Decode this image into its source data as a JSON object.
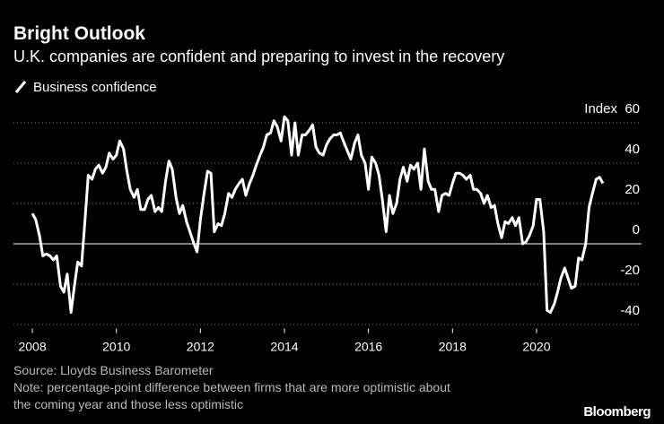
{
  "title": "Bright Outlook",
  "subtitle": "U.K. companies are confident and preparing to invest in the recovery",
  "source": "Source: Lloyds Business Barometer",
  "note": [
    "Note: percentage-point difference between firms that are more optimistic about",
    "the coming year and those less optimistic"
  ],
  "logo": "Bloomberg",
  "chart_data": {
    "type": "line",
    "ylabel": "Index",
    "legend": "top-left",
    "grid": true,
    "xlim": [
      2007.55,
      2022.5
    ],
    "xticks": [
      2008,
      2010,
      2012,
      2014,
      2016,
      2018,
      2020
    ],
    "ylim": [
      -42,
      68
    ],
    "yticks": [
      -40,
      -20,
      0,
      20,
      40,
      60
    ],
    "x": [
      2008.0,
      2008.08,
      2008.17,
      2008.25,
      2008.33,
      2008.42,
      2008.5,
      2008.58,
      2008.67,
      2008.75,
      2008.83,
      2008.92,
      2009.0,
      2009.08,
      2009.17,
      2009.25,
      2009.33,
      2009.42,
      2009.5,
      2009.58,
      2009.67,
      2009.75,
      2009.83,
      2009.92,
      2010.0,
      2010.08,
      2010.17,
      2010.25,
      2010.33,
      2010.42,
      2010.5,
      2010.58,
      2010.67,
      2010.75,
      2010.83,
      2010.92,
      2011.0,
      2011.08,
      2011.17,
      2011.25,
      2011.33,
      2011.42,
      2011.5,
      2011.58,
      2011.67,
      2011.75,
      2011.83,
      2011.92,
      2012.0,
      2012.08,
      2012.17,
      2012.25,
      2012.33,
      2012.42,
      2012.5,
      2012.58,
      2012.67,
      2012.75,
      2012.83,
      2012.92,
      2013.0,
      2013.08,
      2013.17,
      2013.25,
      2013.33,
      2013.42,
      2013.5,
      2013.58,
      2013.67,
      2013.75,
      2013.83,
      2013.92,
      2014.0,
      2014.08,
      2014.17,
      2014.25,
      2014.33,
      2014.42,
      2014.5,
      2014.58,
      2014.67,
      2014.75,
      2014.83,
      2014.92,
      2015.0,
      2015.08,
      2015.17,
      2015.25,
      2015.33,
      2015.42,
      2015.5,
      2015.58,
      2015.67,
      2015.75,
      2015.83,
      2015.92,
      2016.0,
      2016.08,
      2016.17,
      2016.25,
      2016.33,
      2016.42,
      2016.5,
      2016.58,
      2016.67,
      2016.75,
      2016.83,
      2016.92,
      2017.0,
      2017.08,
      2017.17,
      2017.25,
      2017.33,
      2017.42,
      2017.5,
      2017.58,
      2017.67,
      2017.75,
      2017.83,
      2017.92,
      2018.0,
      2018.08,
      2018.17,
      2018.25,
      2018.33,
      2018.42,
      2018.5,
      2018.58,
      2018.67,
      2018.75,
      2018.83,
      2018.92,
      2019.0,
      2019.08,
      2019.17,
      2019.25,
      2019.33,
      2019.42,
      2019.5,
      2019.58,
      2019.67,
      2019.75,
      2019.83,
      2019.92,
      2020.0,
      2020.08,
      2020.17,
      2020.25,
      2020.33,
      2020.42,
      2020.5,
      2020.58,
      2020.67,
      2020.75,
      2020.83,
      2020.92,
      2021.0,
      2021.08,
      2021.17,
      2021.25,
      2021.33,
      2021.42,
      2021.5,
      2021.58
    ],
    "series": [
      {
        "name": "Business confidence",
        "color": "#ffffff",
        "values": [
          15,
          12,
          4,
          -6,
          -5,
          -6,
          -8,
          -6,
          -21,
          -24,
          -15,
          -34,
          -21,
          -9,
          -11,
          11,
          34,
          32,
          37,
          39,
          35,
          38,
          45,
          42,
          44,
          51,
          47,
          36,
          27,
          23,
          27,
          17,
          17,
          22,
          24,
          16,
          18,
          16,
          31,
          41,
          37,
          23,
          15,
          19,
          11,
          6,
          1,
          -4,
          12,
          24,
          36,
          35,
          6,
          10,
          9,
          15,
          25,
          23,
          27,
          30,
          32,
          24,
          30,
          34,
          39,
          44,
          48,
          54,
          55,
          61,
          58,
          51,
          63,
          61,
          44,
          60,
          44,
          54,
          54,
          56,
          59,
          48,
          45,
          44,
          49,
          52,
          54,
          54,
          55,
          50,
          46,
          42,
          50,
          54,
          44,
          40,
          27,
          43,
          40,
          34,
          22,
          6,
          24,
          15,
          20,
          32,
          38,
          31,
          39,
          37,
          40,
          27,
          47,
          31,
          27,
          27,
          16,
          24,
          25,
          24,
          30,
          35,
          35,
          34,
          32,
          34,
          27,
          27,
          25,
          20,
          24,
          18,
          19,
          10,
          3,
          11,
          10,
          13,
          9,
          13,
          0,
          1,
          4,
          9,
          22,
          22,
          6,
          -33,
          -34,
          -30,
          -24,
          -17,
          -12,
          -17,
          -22,
          -21,
          -7,
          -8,
          0,
          18,
          25,
          32,
          33,
          30
        ]
      }
    ]
  }
}
